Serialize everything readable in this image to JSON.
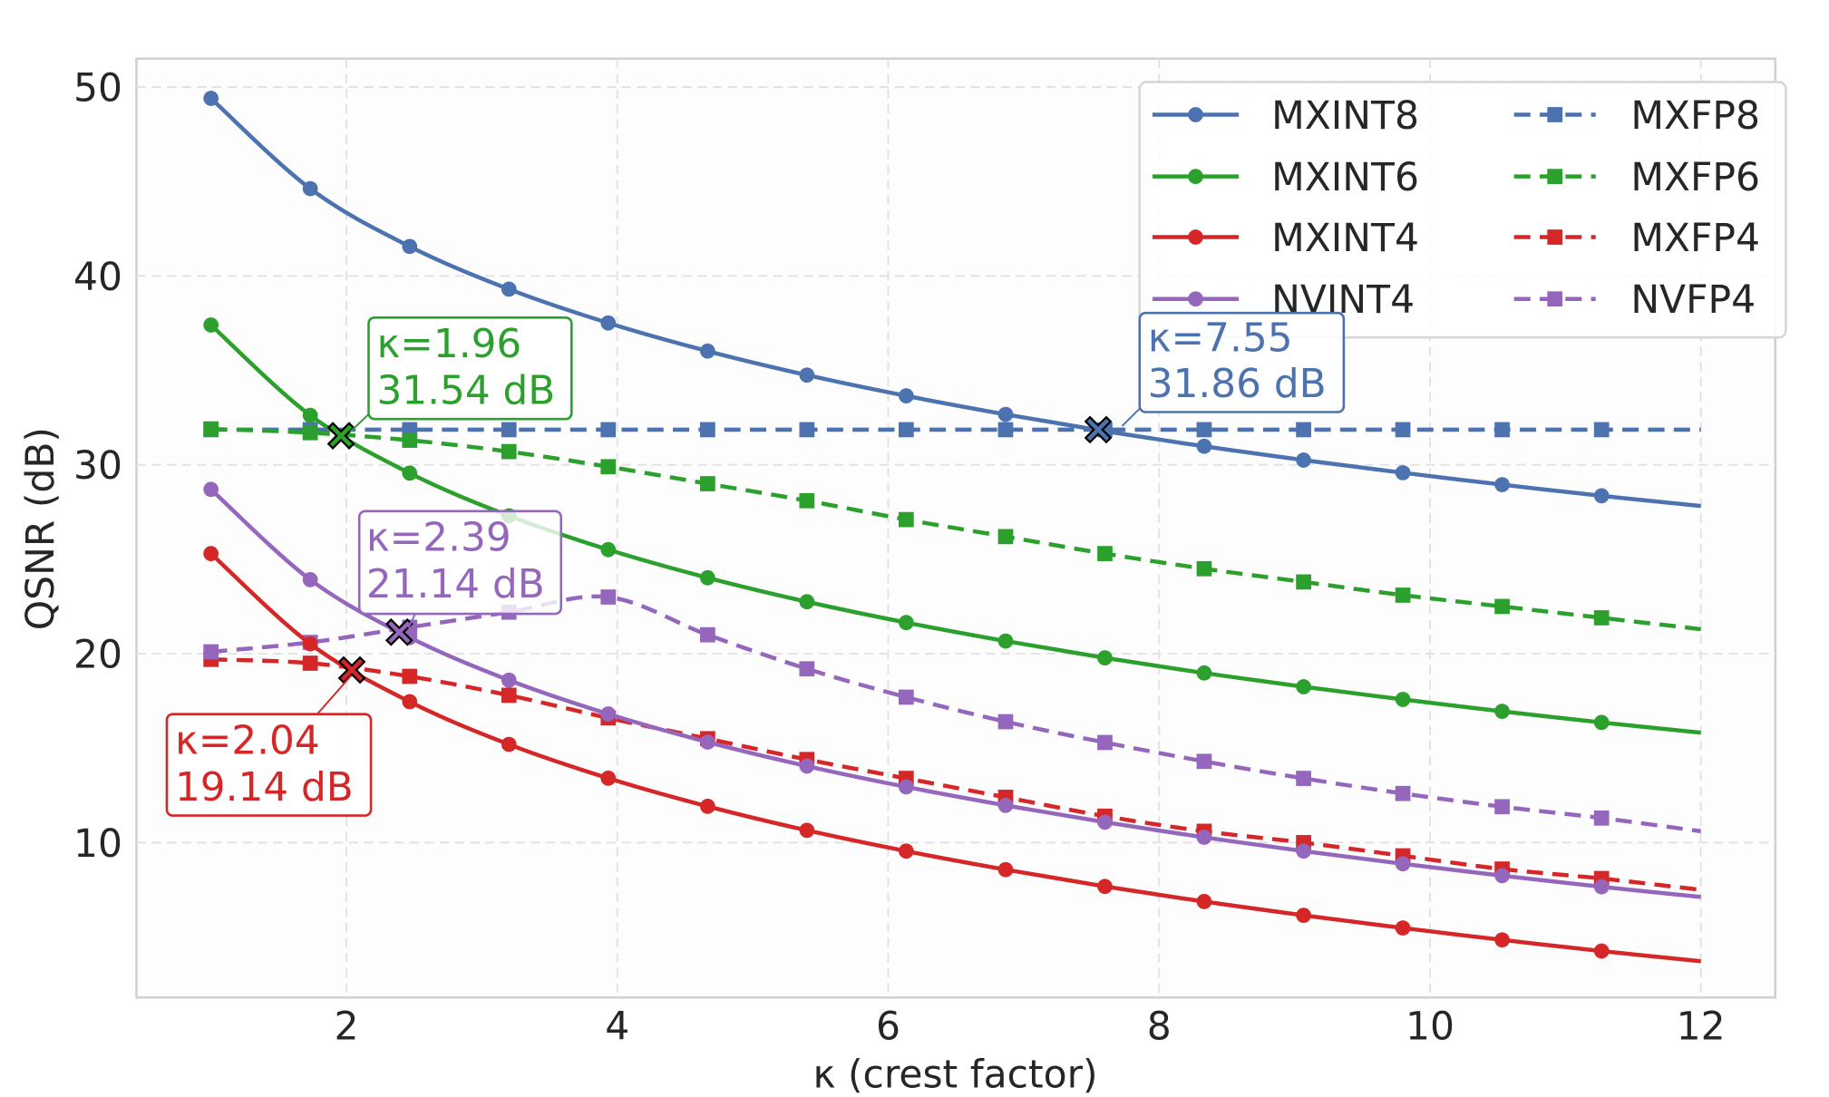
{
  "chart_data": {
    "type": "line",
    "title": "",
    "xlabel": "κ (crest factor)",
    "ylabel": "QSNR (dB)",
    "xlim": [
      0.45,
      12.55
    ],
    "ylim": [
      1.8,
      51.5
    ],
    "xticks": [
      2,
      4,
      6,
      8,
      10,
      12
    ],
    "yticks": [
      10,
      20,
      30,
      40,
      50
    ],
    "grid": true,
    "legend_placement": "top-right",
    "x": [
      1,
      1.733,
      2.467,
      3.2,
      3.933,
      4.667,
      5.4,
      6.133,
      6.867,
      7.6,
      8.333,
      9.067,
      9.8,
      10.533,
      11.267,
      12
    ],
    "series": [
      {
        "name": "MXINT8",
        "color": "#4C72B0",
        "style": "solid",
        "marker": "circle",
        "values": [
          49.4,
          44.62,
          41.56,
          39.3,
          37.51,
          36.02,
          34.75,
          33.65,
          32.67,
          31.78,
          30.98,
          30.25,
          29.58,
          28.95,
          28.36,
          27.82
        ]
      },
      {
        "name": "MXINT6",
        "color": "#2CA02C",
        "style": "solid",
        "marker": "circle",
        "values": [
          37.4,
          32.62,
          29.56,
          27.3,
          25.51,
          24.02,
          22.75,
          21.65,
          20.67,
          19.78,
          18.98,
          18.25,
          17.58,
          16.95,
          16.36,
          15.82
        ]
      },
      {
        "name": "MXINT4",
        "color": "#D62728",
        "style": "solid",
        "marker": "circle",
        "values": [
          25.3,
          20.52,
          17.46,
          15.2,
          13.41,
          11.92,
          10.65,
          9.55,
          8.57,
          7.68,
          6.88,
          6.15,
          5.48,
          4.85,
          4.26,
          3.72
        ]
      },
      {
        "name": "NVINT4",
        "color": "#9467BD",
        "style": "solid",
        "marker": "circle",
        "values": [
          28.7,
          23.92,
          20.86,
          18.6,
          16.81,
          15.32,
          14.05,
          12.95,
          11.97,
          11.08,
          10.28,
          9.55,
          8.88,
          8.25,
          7.66,
          7.12
        ]
      },
      {
        "name": "MXFP8",
        "color": "#4C72B0",
        "style": "dashed",
        "marker": "square",
        "values": [
          31.86,
          31.86,
          31.86,
          31.86,
          31.86,
          31.86,
          31.86,
          31.86,
          31.86,
          31.86,
          31.86,
          31.86,
          31.86,
          31.86,
          31.86,
          31.86
        ]
      },
      {
        "name": "MXFP6",
        "color": "#2CA02C",
        "style": "dashed",
        "marker": "square",
        "values": [
          31.9,
          31.7,
          31.3,
          30.7,
          29.9,
          29.0,
          28.1,
          27.1,
          26.2,
          25.3,
          24.5,
          23.8,
          23.1,
          22.5,
          21.9,
          21.3
        ]
      },
      {
        "name": "MXFP4",
        "color": "#D62728",
        "style": "dashed",
        "marker": "square",
        "values": [
          19.7,
          19.5,
          18.8,
          17.8,
          16.6,
          15.5,
          14.4,
          13.4,
          12.4,
          11.4,
          10.6,
          10.0,
          9.3,
          8.6,
          8.1,
          7.5
        ]
      },
      {
        "name": "NVFP4",
        "color": "#9467BD",
        "style": "dashed",
        "marker": "square",
        "values": [
          20.1,
          20.6,
          21.4,
          22.2,
          23.0,
          21.0,
          19.2,
          17.7,
          16.4,
          15.3,
          14.3,
          13.4,
          12.6,
          11.9,
          11.3,
          10.6
        ]
      }
    ],
    "annotations": [
      {
        "line1": "κ=1.96",
        "line2": "31.54 dB",
        "kappa": 1.96,
        "qsnr": 31.54,
        "color": "#2CA02C"
      },
      {
        "line1": "κ=2.39",
        "line2": "21.14 dB",
        "kappa": 2.39,
        "qsnr": 21.14,
        "color": "#9467BD"
      },
      {
        "line1": "κ=2.04",
        "line2": "19.14 dB",
        "kappa": 2.04,
        "qsnr": 19.14,
        "color": "#D62728"
      },
      {
        "line1": "κ=7.55",
        "line2": "31.86 dB",
        "kappa": 7.55,
        "qsnr": 31.86,
        "color": "#4C72B0"
      }
    ]
  }
}
